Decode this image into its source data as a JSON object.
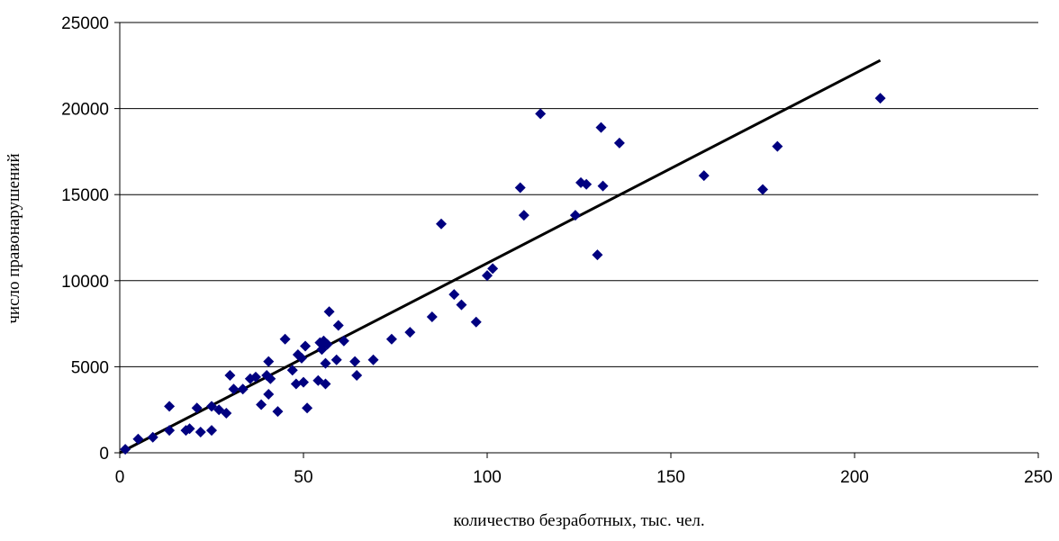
{
  "chart_data": {
    "type": "scatter",
    "title": "",
    "xlabel": "количество безработных, тыс. чел.",
    "ylabel": "число правонарушений",
    "xlim": [
      0,
      250
    ],
    "ylim": [
      0,
      25000
    ],
    "x_ticks": [
      0,
      50,
      100,
      150,
      200,
      250
    ],
    "y_ticks": [
      0,
      5000,
      10000,
      15000,
      20000,
      25000
    ],
    "x_tick_labels": [
      "0",
      "50",
      "100",
      "150",
      "200",
      "250"
    ],
    "y_tick_labels": [
      "0",
      "5000",
      "10000",
      "15000",
      "20000",
      "25000"
    ],
    "grid": "horizontal",
    "legend": "none",
    "marker_color": "#000080",
    "trend_color": "#000000",
    "points": [
      [
        1.5,
        200
      ],
      [
        5,
        800
      ],
      [
        9,
        900
      ],
      [
        13.5,
        2700
      ],
      [
        13.5,
        1300
      ],
      [
        18,
        1300
      ],
      [
        19,
        1400
      ],
      [
        21,
        2600
      ],
      [
        22,
        1200
      ],
      [
        25,
        2700
      ],
      [
        25,
        1300
      ],
      [
        27,
        2500
      ],
      [
        29,
        2300
      ],
      [
        30,
        4500
      ],
      [
        31,
        3700
      ],
      [
        33.5,
        3700
      ],
      [
        35.5,
        4300
      ],
      [
        37,
        4400
      ],
      [
        38.5,
        2800
      ],
      [
        40,
        4500
      ],
      [
        40.5,
        3400
      ],
      [
        40.5,
        5300
      ],
      [
        41,
        4300
      ],
      [
        43,
        2400
      ],
      [
        45,
        6600
      ],
      [
        47,
        4800
      ],
      [
        48,
        4000
      ],
      [
        48.5,
        5700
      ],
      [
        49.5,
        5500
      ],
      [
        50,
        4100
      ],
      [
        50.5,
        6200
      ],
      [
        51,
        2600
      ],
      [
        54,
        4200
      ],
      [
        54.5,
        6400
      ],
      [
        55,
        6000
      ],
      [
        55.5,
        6500
      ],
      [
        56,
        4000
      ],
      [
        56,
        5200
      ],
      [
        56.5,
        6300
      ],
      [
        57,
        8200
      ],
      [
        59,
        5400
      ],
      [
        59.5,
        7400
      ],
      [
        61,
        6500
      ],
      [
        64,
        5300
      ],
      [
        64.5,
        4500
      ],
      [
        69,
        5400
      ],
      [
        74,
        6600
      ],
      [
        79,
        7000
      ],
      [
        85,
        7900
      ],
      [
        87.5,
        13300
      ],
      [
        91,
        9200
      ],
      [
        93,
        8600
      ],
      [
        97,
        7600
      ],
      [
        100,
        10300
      ],
      [
        101.5,
        10700
      ],
      [
        109,
        15400
      ],
      [
        110,
        13800
      ],
      [
        114.5,
        19700
      ],
      [
        124,
        13800
      ],
      [
        125.5,
        15700
      ],
      [
        127,
        15600
      ],
      [
        130,
        11500
      ],
      [
        131,
        18900
      ],
      [
        131.5,
        15500
      ],
      [
        136,
        18000
      ],
      [
        159,
        16100
      ],
      [
        175,
        15300
      ],
      [
        179,
        17800
      ],
      [
        207,
        20600
      ]
    ],
    "trendline": {
      "x": [
        0,
        207
      ],
      "y": [
        0,
        22800
      ]
    }
  }
}
